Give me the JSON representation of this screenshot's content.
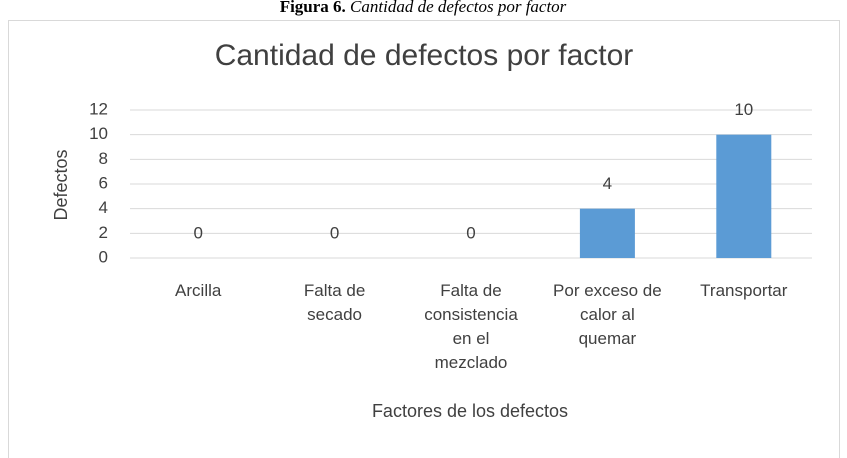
{
  "caption": {
    "label": "Figura 6.",
    "text": "Cantidad de defectos por factor"
  },
  "chart_data": {
    "type": "bar",
    "title": "Cantidad de defectos por factor",
    "categories": [
      [
        "Arcilla"
      ],
      [
        "Falta de",
        "secado"
      ],
      [
        "Falta de",
        "consistencia",
        "en el",
        "mezclado"
      ],
      [
        "Por exceso de",
        "calor al",
        "quemar"
      ],
      [
        "Transportar"
      ]
    ],
    "values": [
      0,
      0,
      0,
      4,
      10
    ],
    "color": "#5b9bd5",
    "x_label": "Factores de los defectos",
    "y_label": "Defectos",
    "ylim": [
      0,
      12
    ],
    "yticks": [
      0,
      2,
      4,
      6,
      8,
      10,
      12
    ],
    "grid": true,
    "value_labels_shown": true
  }
}
